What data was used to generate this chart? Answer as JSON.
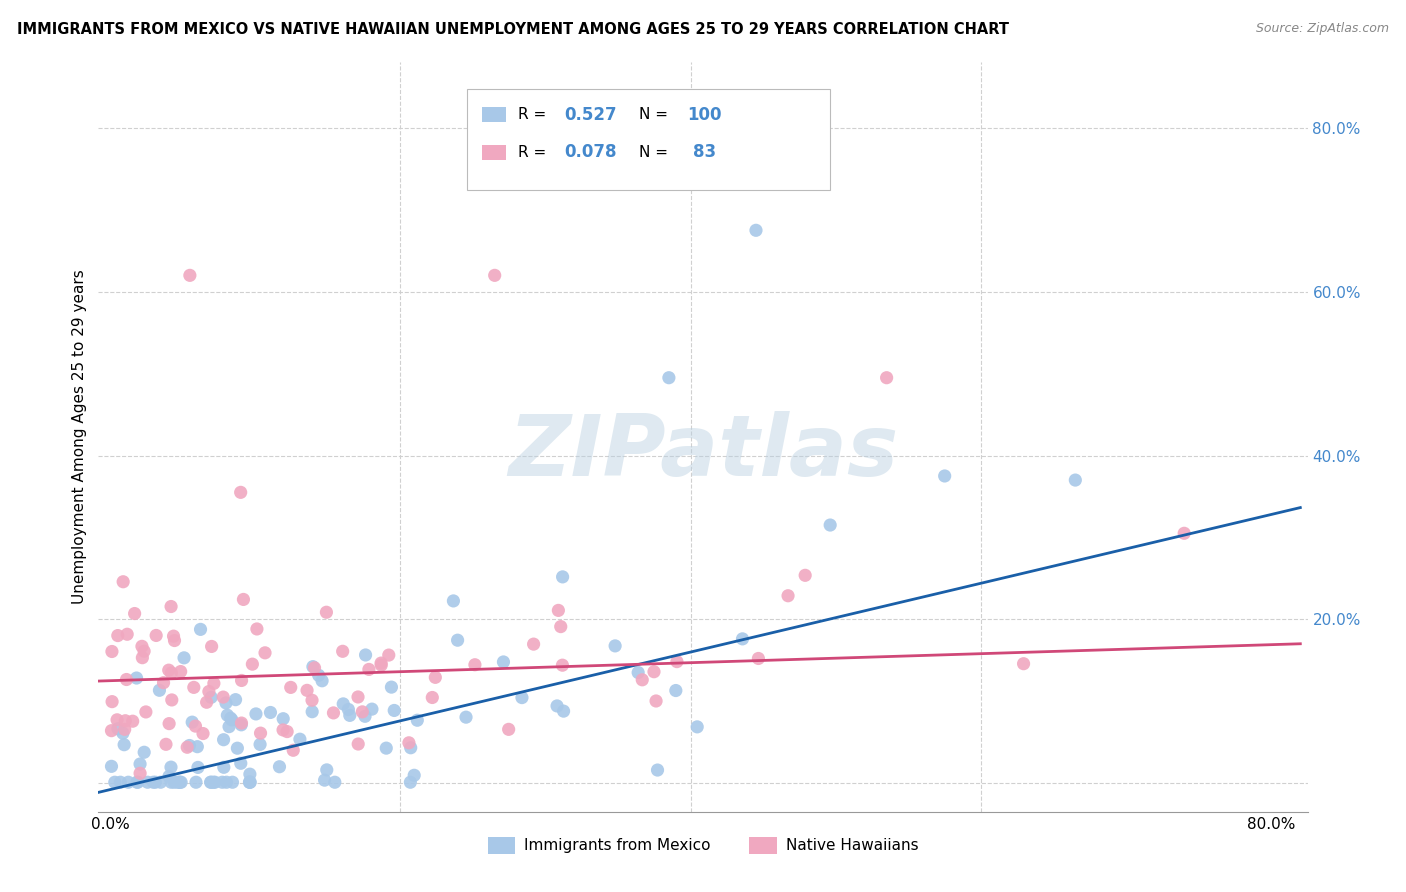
{
  "title": "IMMIGRANTS FROM MEXICO VS NATIVE HAWAIIAN UNEMPLOYMENT AMONG AGES 25 TO 29 YEARS CORRELATION CHART",
  "source": "Source: ZipAtlas.com",
  "ylabel": "Unemployment Among Ages 25 to 29 years",
  "watermark": "ZIPatlas",
  "background_color": "#ffffff",
  "grid_color": "#d0d0d0",
  "blue_color": "#a8c8e8",
  "pink_color": "#f0a8c0",
  "blue_line_color": "#1a5fa8",
  "pink_line_color": "#d04878",
  "right_tick_color": "#4488cc",
  "blue_R": "0.527",
  "blue_N": "100",
  "pink_R": "0.078",
  "pink_N": "83",
  "label_blue": "Immigrants from Mexico",
  "label_pink": "Native Hawaiians",
  "blue_trend_intercept": -0.008,
  "blue_trend_slope": 0.42,
  "pink_trend_intercept": 0.125,
  "pink_trend_slope": 0.055
}
